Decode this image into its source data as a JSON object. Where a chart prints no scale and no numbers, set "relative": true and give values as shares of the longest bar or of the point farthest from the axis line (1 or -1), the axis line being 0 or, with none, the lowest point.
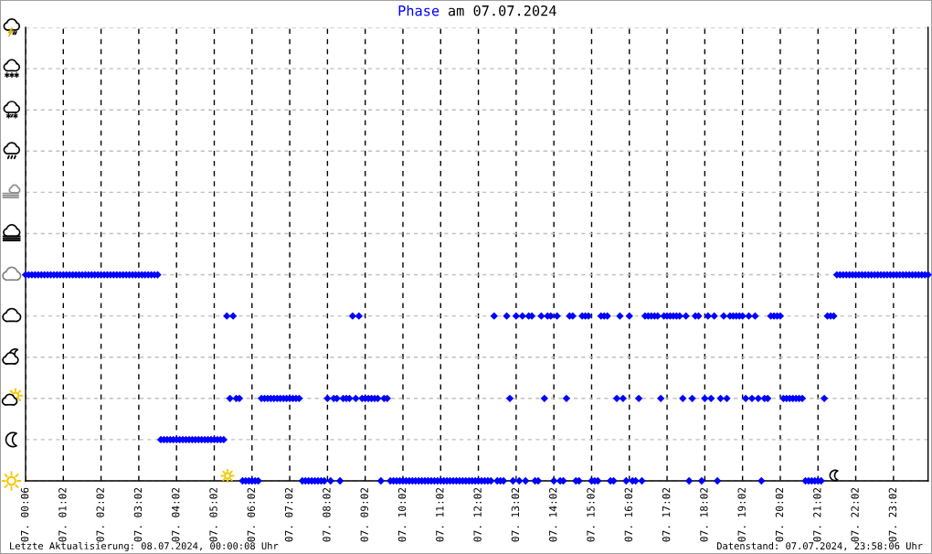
{
  "chart_data": {
    "type": "scatter",
    "title": "am 07.07.2024",
    "relative": true,
    "categories": [
      "07. 00:06",
      null,
      null,
      null,
      null,
      null,
      null,
      null,
      null,
      null,
      null,
      null,
      "07. 01:02",
      null,
      null,
      null,
      null,
      null,
      null,
      null,
      null,
      null,
      null,
      null,
      "07. 02:02",
      null,
      null,
      null,
      null,
      null,
      null,
      null,
      null,
      null,
      null,
      null,
      "07. 03:02",
      null,
      null,
      null,
      null,
      null,
      null,
      null,
      null,
      null,
      null,
      null,
      "07. 04:02",
      null,
      null,
      null,
      null,
      null,
      null,
      null,
      null,
      null,
      null,
      null,
      "07. 05:02",
      null,
      null,
      null,
      null,
      null,
      null,
      null,
      null,
      null,
      null,
      null,
      "07. 06:02",
      null,
      null,
      null,
      null,
      null,
      null,
      null,
      null,
      null,
      null,
      null,
      "07. 07:02",
      null,
      null,
      null,
      null,
      null,
      null,
      null,
      null,
      null,
      null,
      null,
      "07. 08:02",
      null,
      null,
      null,
      null,
      null,
      null,
      null,
      null,
      null,
      null,
      null,
      "07. 09:02",
      null,
      null,
      null,
      null,
      null,
      null,
      null,
      null,
      null,
      null,
      null,
      "07. 10:02",
      null,
      null,
      null,
      null,
      null,
      null,
      null,
      null,
      null,
      null,
      null,
      "07. 11:02",
      null,
      null,
      null,
      null,
      null,
      null,
      null,
      null,
      null,
      null,
      null,
      "07. 12:02",
      null,
      null,
      null,
      null,
      null,
      null,
      null,
      null,
      null,
      null,
      null,
      "07. 13:02",
      null,
      null,
      null,
      null,
      null,
      null,
      null,
      null,
      null,
      null,
      null,
      "07. 14:02",
      null,
      null,
      null,
      null,
      null,
      null,
      null,
      null,
      null,
      null,
      null,
      "07. 15:02",
      null,
      null,
      null,
      null,
      null,
      null,
      null,
      null,
      null,
      null,
      null,
      "07. 16:02",
      null,
      null,
      null,
      null,
      null,
      null,
      null,
      null,
      null,
      null,
      null,
      "07. 17:02",
      null,
      null,
      null,
      null,
      null,
      null,
      null,
      null,
      null,
      null,
      null,
      "07. 18:02",
      null,
      null,
      null,
      null,
      null,
      null,
      null,
      null,
      null,
      null,
      null,
      "07. 19:02",
      null,
      null,
      null,
      null,
      null,
      null,
      null,
      null,
      null,
      null,
      null,
      "07. 20:02",
      null,
      null,
      null,
      null,
      null,
      null,
      null,
      null,
      null,
      null,
      null,
      "07. 21:02",
      null,
      null,
      null,
      null,
      null,
      null,
      null,
      null,
      null,
      null,
      null,
      "07. 22:02",
      null,
      null,
      null,
      null,
      null,
      null,
      null,
      null,
      null,
      null,
      null,
      "07. 23:02",
      null,
      null,
      null,
      null,
      null,
      null,
      null,
      null,
      null,
      null,
      null
    ],
    "series": [
      {
        "name": "Phase",
        "color": "#0000ff",
        "values": [
          1,
          1,
          1,
          1,
          1,
          1,
          1,
          1,
          1,
          1,
          1,
          1,
          1,
          1,
          1,
          1,
          1,
          1,
          1,
          1,
          1,
          1,
          1,
          1,
          1,
          1,
          1,
          1,
          1,
          1,
          1,
          1,
          1,
          1,
          1,
          1,
          1,
          1,
          1,
          1,
          1,
          1,
          1,
          0.2,
          0.2,
          0.2,
          0.2,
          0.2,
          0.2,
          0.2,
          0.2,
          0.2,
          0.2,
          0.2,
          0.2,
          0.2,
          0.2,
          0.2,
          0.2,
          0.2,
          0.2,
          0.2,
          0.2,
          0.2,
          0.8,
          0.4,
          0.8,
          0.4,
          0.4,
          0,
          0,
          0,
          0,
          0,
          0,
          0.4,
          0.4,
          0.4,
          0.4,
          0.4,
          0.4,
          0.4,
          0.4,
          0.4,
          0.4,
          0.4,
          0.4,
          0.4,
          0,
          0,
          0,
          0,
          0,
          0,
          0,
          0,
          0.4,
          0,
          0.4,
          0.4,
          0,
          0.4,
          0.4,
          0.4,
          0.8,
          0.4,
          0.8,
          0.4,
          0.4,
          0.4,
          0.4,
          0.4,
          0.4,
          0,
          0.4,
          0.4,
          0,
          0,
          0,
          0,
          0,
          0,
          0,
          0,
          0,
          0,
          0,
          0,
          0,
          0,
          0,
          0,
          0,
          0,
          0,
          0,
          0,
          0,
          0,
          0,
          0,
          0,
          0,
          0,
          0,
          0,
          0,
          0,
          0,
          0.8,
          0,
          0,
          0,
          0.8,
          0.4,
          0,
          0.8,
          0,
          0.8,
          0,
          0.8,
          0.8,
          0,
          0,
          0.8,
          0.4,
          0.8,
          0.8,
          0,
          0.8,
          0,
          0,
          0.4,
          0.8,
          0.8,
          0,
          0,
          0.8,
          0.8,
          0.8,
          0,
          0,
          0,
          0.8,
          0.8,
          0.8,
          0,
          0,
          0.4,
          0.8,
          0.4,
          0,
          0.8,
          0,
          0,
          0.4,
          0,
          0.8,
          0.8,
          0.8,
          0.8,
          0.8,
          0.4,
          0.8,
          0.8,
          0.8,
          0.8,
          0.8,
          0.8,
          0.4,
          0.8,
          0,
          0.4,
          0.8,
          0.8,
          0,
          0.4,
          0.8,
          0.4,
          0.8,
          0,
          0.4,
          0.8,
          0.4,
          0.8,
          0.8,
          0.8,
          0.8,
          0.8,
          0.4,
          0.8,
          0.4,
          0.8,
          0.4,
          0,
          0.4,
          0.4,
          0.8,
          0.8,
          0.8,
          0.8,
          0.4,
          0.4,
          0.4,
          0.4,
          0.4,
          0.4,
          0.4,
          0,
          0,
          0,
          0,
          0,
          0,
          0.4,
          0.8,
          0.8,
          0.8,
          1,
          1,
          1,
          1,
          1,
          1,
          1,
          1,
          1,
          1,
          1,
          1,
          1,
          1,
          1,
          1,
          1,
          1,
          1,
          1,
          1,
          1,
          1,
          1,
          1,
          1,
          1,
          1,
          1,
          1
        ]
      }
    ],
    "grid": true,
    "legend": "top",
    "marker": "diamond",
    "annotations": [
      "Letzte Aktualisierung: 08.07.2024, 00:00:08 Uhr",
      "Datenstand: 07.07.2024, 23:58:06 Uhr"
    ]
  }
}
